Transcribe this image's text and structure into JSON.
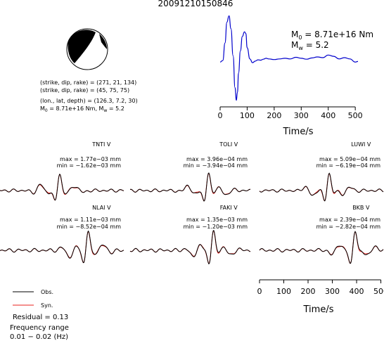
{
  "title": "20091210150846",
  "source_params": {
    "line1": "(strike, dip, rake) = (271, 21, 134)",
    "line2": "(strike, dip, rake) = (45, 75, 75)",
    "line3": "(lon., lat, depth) = (126.3, 7.2, 30)",
    "m0_prefix": "M",
    "m0_sub": "0",
    "m0_text": " = 8.71e+16 Nm, M",
    "mw_sub": "w",
    "mw_text": " = 5.2"
  },
  "stf_annotation": {
    "m0_prefix": "M",
    "m0_sub": "0",
    "m0_value": " = 8.71e+16 Nm",
    "mw_prefix": "M",
    "mw_sub": "w",
    "mw_value": " = 5.2"
  },
  "legend": {
    "obs_label": "Obs.",
    "syn_label": "Syn.",
    "residual": "Residual = 0.13",
    "freq_title": "Frequency range",
    "freq_range": "0.01 − 0.02 (Hz)"
  },
  "colors": {
    "observed": "#000000",
    "synthetic": "#e8201c",
    "stf": "#0000cc"
  },
  "chart_data": [
    {
      "type": "line",
      "name": "source-time-function",
      "xlabel": "Time/s",
      "ylabel": "",
      "xlim": [
        0,
        510
      ],
      "xticks": [
        0,
        100,
        200,
        300,
        400,
        500
      ],
      "ylim": [
        -1.25,
        1.55
      ],
      "series": [
        {
          "x": [
            0,
            10,
            18,
            25,
            33,
            40,
            48,
            55,
            60,
            64,
            68,
            75,
            82,
            90,
            95,
            100,
            110,
            120,
            130,
            140,
            150,
            160,
            170,
            180,
            200,
            220,
            240,
            260,
            280,
            300,
            320,
            340,
            360,
            380,
            400,
            420,
            440,
            460,
            480,
            500,
            510
          ],
          "values": [
            0.0,
            0.05,
            0.6,
            1.25,
            1.45,
            1.05,
            0.2,
            -0.8,
            -1.2,
            -0.95,
            -0.35,
            0.35,
            0.8,
            0.95,
            0.9,
            0.45,
            0.1,
            -0.02,
            0.03,
            0.07,
            0.06,
            0.09,
            0.12,
            0.1,
            0.08,
            0.1,
            0.12,
            0.1,
            0.15,
            0.12,
            0.09,
            0.13,
            0.16,
            0.14,
            0.22,
            0.18,
            0.1,
            0.14,
            0.1,
            0.0,
            0.02
          ]
        }
      ]
    },
    {
      "type": "line",
      "name": "waveform-time-axis",
      "xlabel": "Time/s",
      "xlim": [
        0,
        510
      ],
      "xticks": [
        0,
        100,
        200,
        300,
        400,
        500
      ]
    }
  ],
  "stations": [
    {
      "name": "TNTI V",
      "max": "max = 1.77e−03 mm",
      "min": "min = −1.62e−03 mm"
    },
    {
      "name": "TOLI V",
      "max": "max = 3.96e−04 mm",
      "min": "min = −3.94e−04 mm"
    },
    {
      "name": "LUWI V",
      "max": "max = 5.09e−04 mm",
      "min": "min = −6.19e−04 mm"
    },
    {
      "name": "NLAI V",
      "max": "max = 1.11e−03 mm",
      "min": "min = −8.52e−04 mm"
    },
    {
      "name": "FAKI V",
      "max": "max = 1.35e−03 mm",
      "min": "min = −1.20e−03 mm"
    },
    {
      "name": "BKB V",
      "max": "max = 2.39e−04 mm",
      "min": "min = −2.82e−04 mm"
    }
  ]
}
